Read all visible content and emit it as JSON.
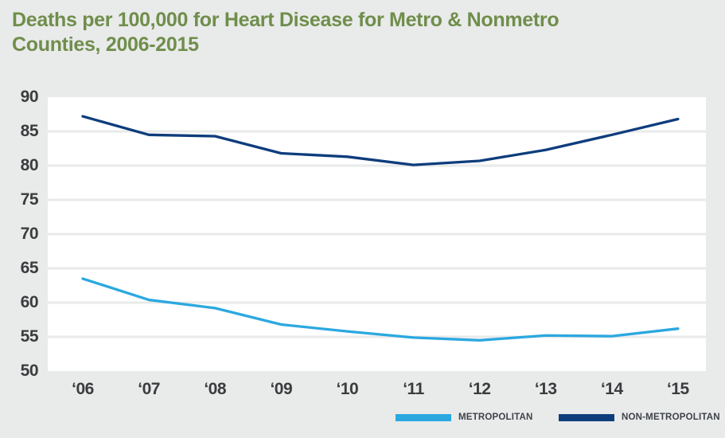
{
  "title": {
    "line1": "Deaths per 100,000 for Heart Disease for Metro & Nonmetro",
    "line2": "Counties, 2006-2015",
    "color": "#6f8e4b"
  },
  "colors": {
    "background": "#e9eaea",
    "plot_background": "#ffffff",
    "gridline": "#e9eaea",
    "axis_text": "#3a3c3e",
    "legend_text": "#3e434a",
    "metropolitan": "#2ba8e0",
    "non_metropolitan": "#0e3d7c"
  },
  "chart_data": {
    "type": "line",
    "title": "Deaths per 100,000 for Heart Disease for Metro & Nonmetro Counties, 2006-2015",
    "categories": [
      "‘06",
      "‘07",
      "‘08",
      "‘09",
      "‘10",
      "‘11",
      "‘12",
      "‘13",
      "‘14",
      "‘15"
    ],
    "series": [
      {
        "name": "METROPOLITAN",
        "color": "#2ba8e0",
        "values": [
          63.5,
          60.4,
          59.2,
          56.8,
          55.8,
          54.9,
          54.5,
          55.2,
          55.1,
          56.2
        ]
      },
      {
        "name": "NON-METROPOLITAN",
        "color": "#0e3d7c",
        "values": [
          87.2,
          84.5,
          84.3,
          81.8,
          81.3,
          80.1,
          80.7,
          82.3,
          84.5,
          86.8
        ]
      }
    ],
    "xlabel": "",
    "ylabel": "",
    "ylim": [
      50,
      90
    ],
    "ytick_step": 5,
    "yticks": [
      90,
      85,
      80,
      75,
      70,
      65,
      60,
      55,
      50
    ],
    "grid": true,
    "legend_position": "bottom-right"
  },
  "legend": {
    "items": [
      {
        "label": "METROPOLITAN",
        "color": "#2ba8e0"
      },
      {
        "label": "NON-METROPOLITAN",
        "color": "#0e3d7c"
      }
    ]
  }
}
